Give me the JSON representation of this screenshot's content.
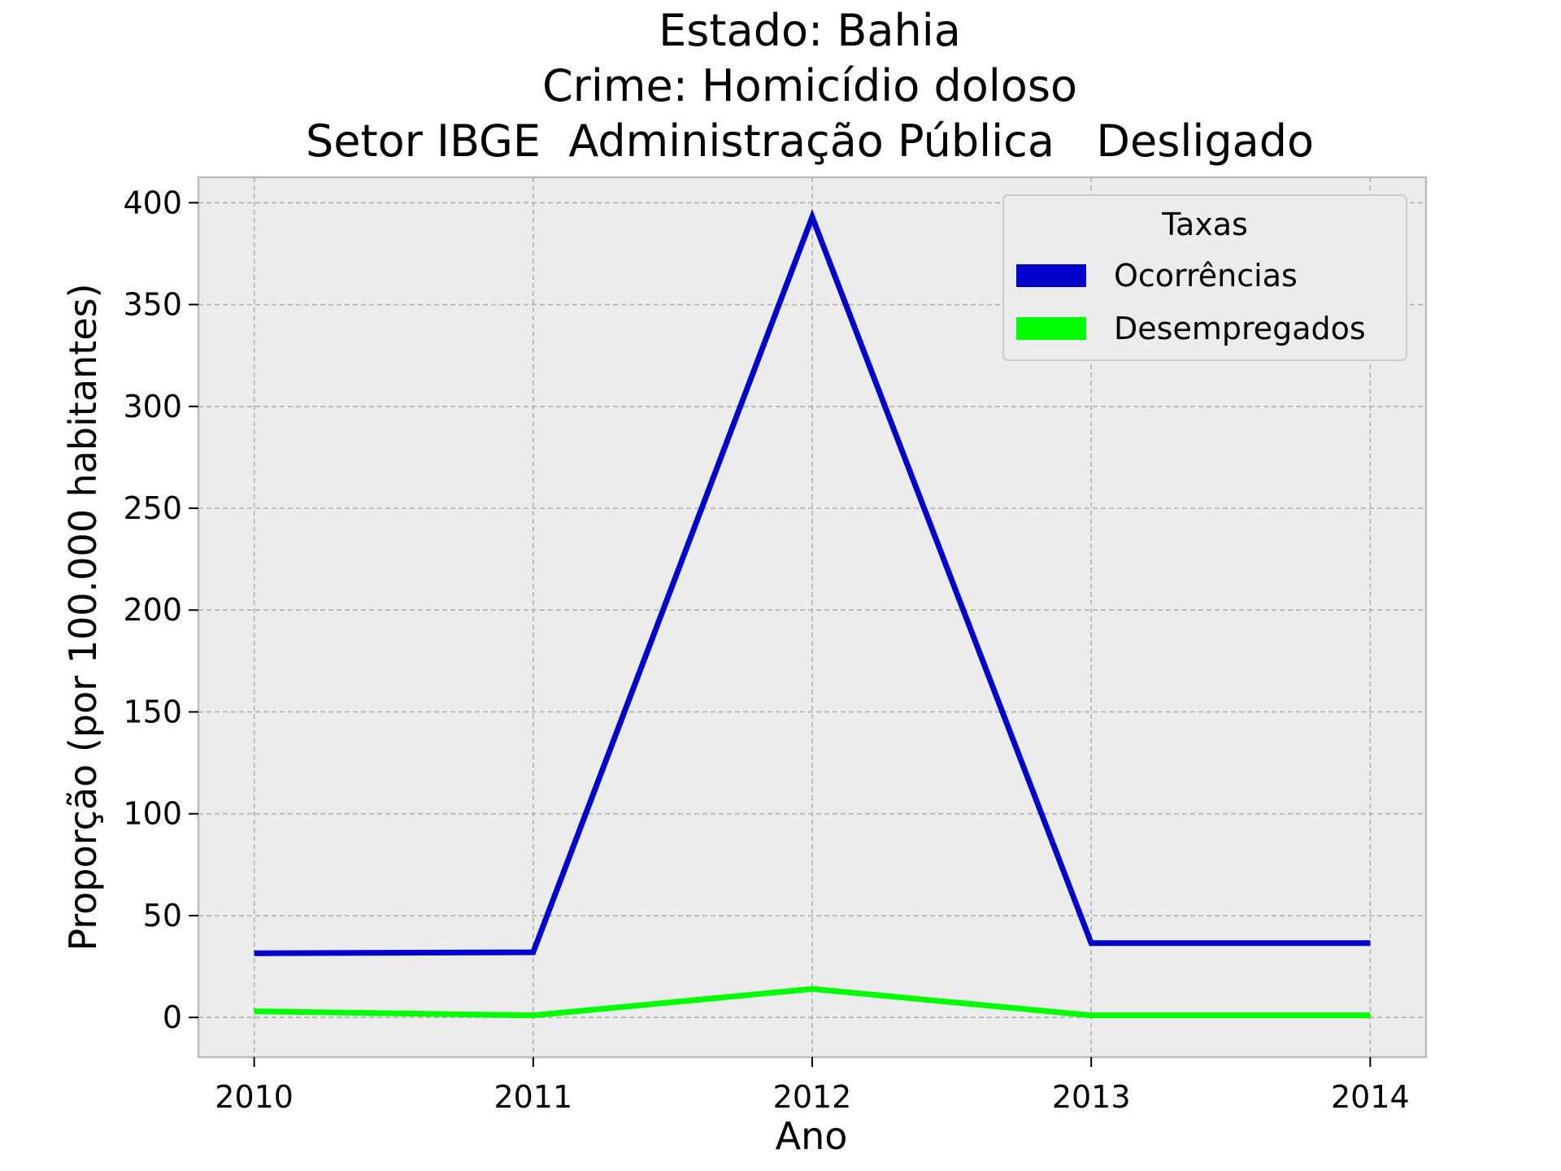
{
  "chart_data": {
    "type": "line",
    "title_lines": [
      "Estado: Bahia",
      "Crime: Homicídio doloso",
      "Setor IBGE  Administração Pública   Desligado"
    ],
    "xlabel": "Ano",
    "ylabel": "Proporção (por 100.000 habitantes)",
    "x": [
      2010,
      2011,
      2012,
      2013,
      2014
    ],
    "x_tick_labels": [
      "2010",
      "2011",
      "2012",
      "2013",
      "2014"
    ],
    "y_ticks": [
      0,
      50,
      100,
      150,
      200,
      250,
      300,
      350,
      400
    ],
    "y_tick_labels": [
      "0",
      "50",
      "100",
      "150",
      "200",
      "250",
      "300",
      "350",
      "400"
    ],
    "xlim": [
      2009.8,
      2014.2
    ],
    "ylim": [
      -19.5,
      412.5
    ],
    "grid": true,
    "legend": {
      "title": "Taxas",
      "placement": "top-right"
    },
    "series": [
      {
        "name": "Ocorrências",
        "color": "#0000cc",
        "values": [
          31.5,
          32,
          393,
          36.5,
          36.5
        ]
      },
      {
        "name": "Desempregados",
        "color": "#00ff00",
        "values": [
          3,
          1,
          14,
          1,
          1
        ]
      }
    ],
    "plot_background": "#ececec",
    "grid_color": "#b0b0b0"
  }
}
